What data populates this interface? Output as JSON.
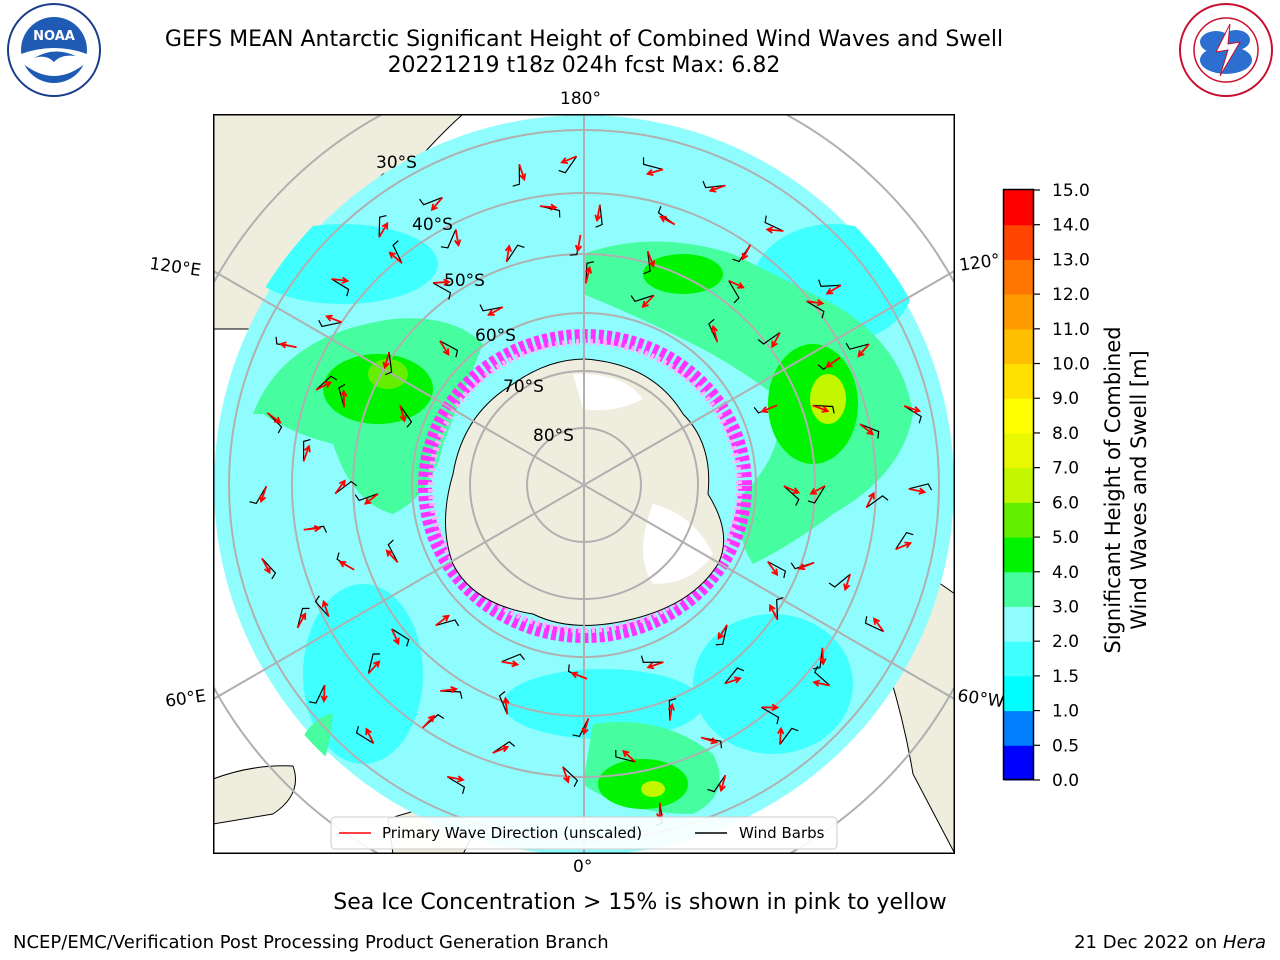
{
  "title": {
    "line1": "GEFS MEAN Antarctic Significant Height of Combined Wind Waves and Swell",
    "line2": "20221219 t18z 024h fcst   Max: 6.82"
  },
  "logos": {
    "left": {
      "text": "NOAA",
      "ring_top": "NATIONAL OCEANIC AND ATMOSPHERIC ADMINISTRATION",
      "ring_bottom": "U.S. DEPARTMENT OF COMMERCE"
    },
    "right": {
      "ring_text": "NATIONAL WEATHER SERVICE"
    }
  },
  "map": {
    "longitude_labels": {
      "top": "180°",
      "bottom": "0°",
      "upper_left": "120°E",
      "upper_right": "120°",
      "lower_left": "60°E",
      "lower_right": "60°W"
    },
    "latitude_labels": [
      "30°S",
      "40°S",
      "50°S",
      "60°S",
      "70°S",
      "80°S"
    ],
    "colors": {
      "land": "#efedde",
      "ocean_low": "#8ffdfd",
      "ocean_mid": "#46fd9f",
      "ice": "#ff33ff",
      "grid": "#b0b0b0"
    },
    "legend": {
      "wave_label": "Primary Wave Direction (unscaled)",
      "barb_label": "Wind Barbs",
      "wave_color": "#ff0000",
      "barb_color": "#000000"
    }
  },
  "colorbar": {
    "label_line1": "Significant Height of Combined",
    "label_line2": "Wind Waves and Swell [m]",
    "ticks": [
      "0.0",
      "0.5",
      "1.0",
      "1.5",
      "2.0",
      "3.0",
      "4.0",
      "5.0",
      "6.0",
      "7.0",
      "8.0",
      "9.0",
      "10.0",
      "11.0",
      "12.0",
      "13.0",
      "14.0",
      "15.0"
    ],
    "colors": [
      "#0000ff",
      "#0080ff",
      "#00ffff",
      "#40ffff",
      "#8ffdfd",
      "#46fd9f",
      "#00f400",
      "#64ee00",
      "#c3f700",
      "#e8f800",
      "#ffff00",
      "#ffe000",
      "#ffbf00",
      "#ff9b00",
      "#ff7700",
      "#ff4500",
      "#ff0000"
    ]
  },
  "footer": {
    "caption": "Sea Ice Concentration > 15% is shown in pink to yellow",
    "left": "NCEP/EMC/Verification Post Processing Product Generation Branch",
    "right_date": "21 Dec 2022 on ",
    "right_host": "Hera"
  }
}
